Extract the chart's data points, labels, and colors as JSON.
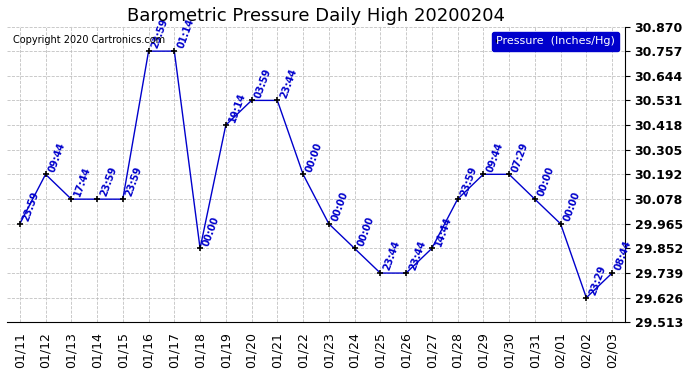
{
  "title": "Barometric Pressure Daily High 20200204",
  "copyright": "Copyright 2020 Cartronics.com",
  "legend_label": "Pressure  (Inches/Hg)",
  "background_color": "#ffffff",
  "plot_bg_color": "#ffffff",
  "line_color": "#0000cc",
  "marker_color": "#000000",
  "grid_color": "#bbbbbb",
  "dates": [
    "01/11",
    "01/12",
    "01/13",
    "01/14",
    "01/15",
    "01/16",
    "01/17",
    "01/18",
    "01/19",
    "01/20",
    "01/21",
    "01/22",
    "01/23",
    "01/24",
    "01/25",
    "01/26",
    "01/27",
    "01/28",
    "01/29",
    "01/30",
    "01/31",
    "02/01",
    "02/02",
    "02/03"
  ],
  "values": [
    29.965,
    30.192,
    30.078,
    30.078,
    30.078,
    30.757,
    30.757,
    29.852,
    30.418,
    30.531,
    30.531,
    30.192,
    29.965,
    29.852,
    29.739,
    29.739,
    29.852,
    30.078,
    30.192,
    30.192,
    30.078,
    29.965,
    29.626,
    29.739
  ],
  "time_labels": [
    "23:59",
    "09:44",
    "17:44",
    "23:59",
    "23:59",
    "23:59",
    "01:14",
    "00:00",
    "19:14",
    "03:59",
    "23:44",
    "00:00",
    "00:00",
    "00:00",
    "23:44",
    "23:44",
    "14:44",
    "23:59",
    "09:44",
    "07:29",
    "00:00",
    "00:00",
    "23:29",
    "08:44"
  ],
  "ylim": [
    29.513,
    30.87
  ],
  "yticks": [
    29.513,
    29.626,
    29.739,
    29.852,
    29.965,
    30.078,
    30.192,
    30.305,
    30.418,
    30.531,
    30.644,
    30.757,
    30.87
  ],
  "title_fontsize": 13,
  "tick_fontsize": 9,
  "annot_fontsize": 7,
  "legend_fontsize": 8
}
